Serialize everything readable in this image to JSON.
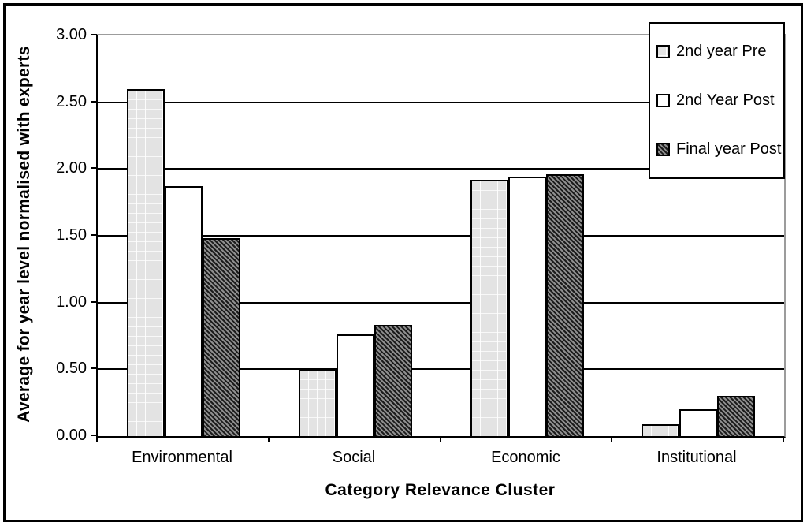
{
  "chart_data": {
    "type": "bar",
    "title": "",
    "xlabel": "Category Relevance Cluster",
    "ylabel": "Average for year level normalised with experts",
    "categories": [
      "Environmental",
      "Social",
      "Economic",
      "Institutional"
    ],
    "series": [
      {
        "name": "2nd year Pre",
        "pattern": "dotted-grid-light-gray",
        "values": [
          2.6,
          0.5,
          1.92,
          0.09
        ]
      },
      {
        "name": "2nd Year Post",
        "pattern": "solid-white",
        "values": [
          1.87,
          0.76,
          1.94,
          0.2
        ]
      },
      {
        "name": "Final year Post",
        "pattern": "diagonal-hatch-dark",
        "values": [
          1.48,
          0.83,
          1.96,
          0.3
        ]
      }
    ],
    "ylim": [
      0.0,
      3.0
    ],
    "ytick_step": 0.5,
    "ytick_labels": [
      "0.00",
      "0.50",
      "1.00",
      "1.50",
      "2.00",
      "2.50",
      "3.00"
    ],
    "grid": true,
    "gridline_values": [
      0.5,
      1.0,
      1.5,
      2.0,
      2.5
    ],
    "top_gridline_value": 3.0,
    "legend_position": "top-right"
  },
  "colors": {
    "background": "#ffffff",
    "axis_and_grid": "#000000",
    "plot_top_right_border": "#9c9c9c",
    "bar_pre_fill": "#e3e3e3",
    "bar_post_fill": "#ffffff",
    "bar_final_dark": "#1c1c1c",
    "bar_final_light": "#8e8e8e",
    "text": "#000000"
  }
}
